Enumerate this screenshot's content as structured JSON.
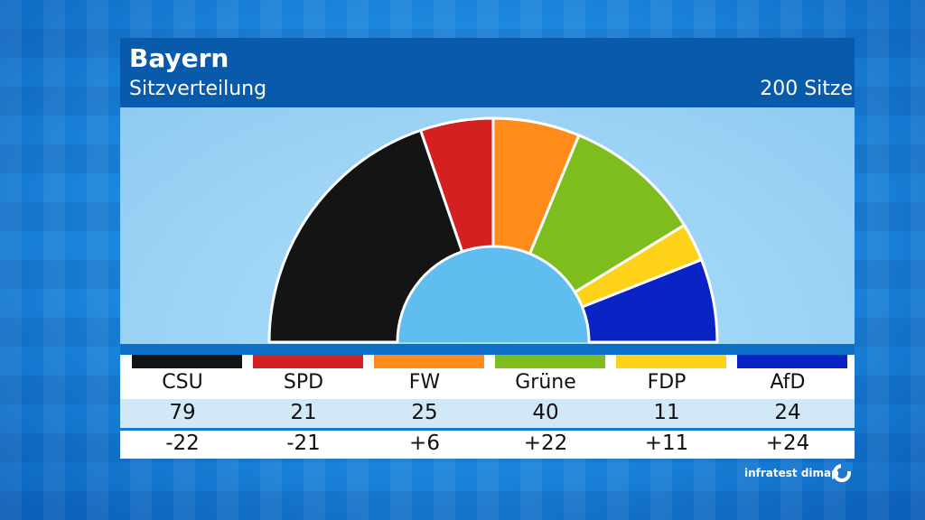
{
  "header": {
    "title": "Bayern",
    "subtitle": "Sitzverteilung",
    "total": "200 Sitze"
  },
  "chart_data": {
    "type": "pie",
    "subtype": "half-donut (parliament seat distribution)",
    "title": "Bayern",
    "subtitle": "Sitzverteilung",
    "total_seats": 200,
    "parties": [
      {
        "name": "CSU",
        "seats": 79,
        "change": "-22",
        "color": "#141414"
      },
      {
        "name": "SPD",
        "seats": 21,
        "change": "-21",
        "color": "#d42020"
      },
      {
        "name": "FW",
        "seats": 25,
        "change": "+6",
        "color": "#ff8c1a"
      },
      {
        "name": "Grüne",
        "seats": 40,
        "change": "+22",
        "color": "#7dbd1e"
      },
      {
        "name": "FDP",
        "seats": 11,
        "change": "+11",
        "color": "#ffd21a"
      },
      {
        "name": "AfD",
        "seats": 24,
        "change": "+24",
        "color": "#0a23c4"
      }
    ]
  },
  "logo": {
    "text": "infratest dimap",
    "mark": "infratest-dimap-logo-icon"
  }
}
